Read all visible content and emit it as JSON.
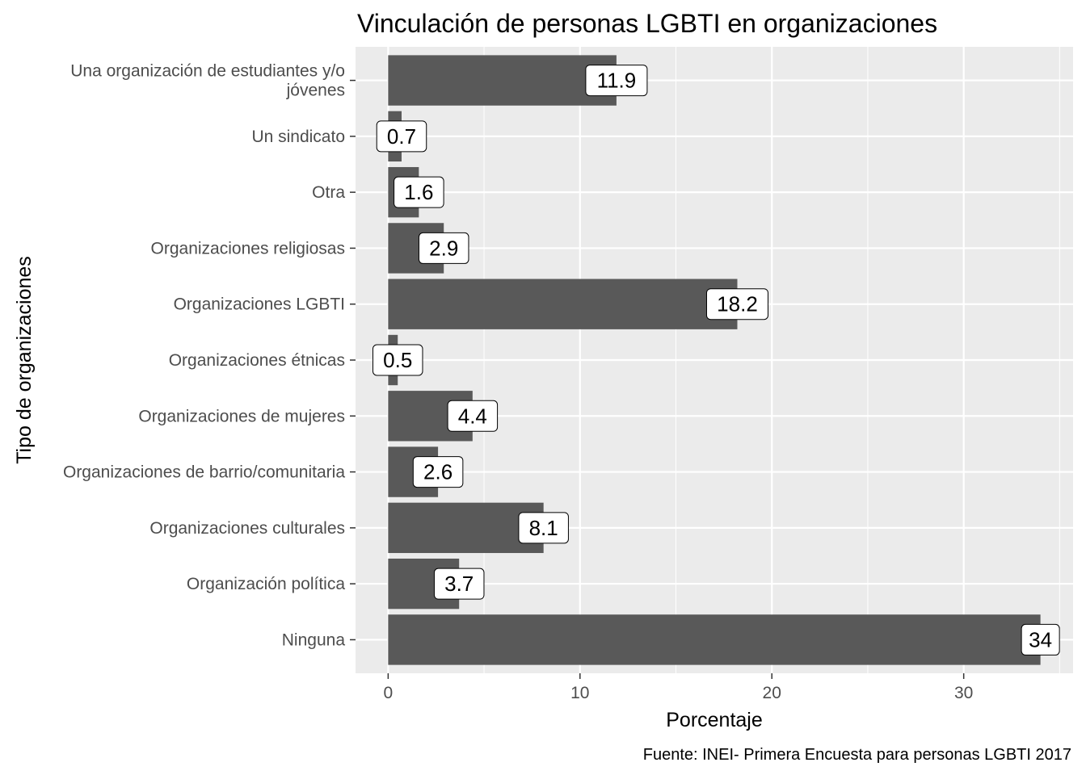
{
  "chart_data": {
    "type": "bar",
    "orientation": "horizontal",
    "title": "Vinculación de personas LGBTI en organizaciones",
    "xlabel": "Porcentaje",
    "ylabel": "Tipo de organizaciones",
    "caption": "Fuente: INEI- Primera Encuesta para personas LGBTI 2017",
    "categories": [
      "Una organización de estudiantes y/o jóvenes",
      "Un sindicato",
      "Otra",
      "Organizaciones religiosas",
      "Organizaciones LGBTI",
      "Organizaciones étnicas",
      "Organizaciones de mujeres",
      "Organizaciones de barrio/comunitaria",
      "Organizaciones culturales",
      "Organización política",
      "Ninguna"
    ],
    "category_lines": [
      [
        "Una organización de estudiantes y/o",
        "jóvenes"
      ],
      [
        "Un sindicato"
      ],
      [
        "Otra"
      ],
      [
        "Organizaciones religiosas"
      ],
      [
        "Organizaciones LGBTI"
      ],
      [
        "Organizaciones étnicas"
      ],
      [
        "Organizaciones de mujeres"
      ],
      [
        "Organizaciones de barrio/comunitaria"
      ],
      [
        "Organizaciones culturales"
      ],
      [
        "Organización política"
      ],
      [
        "Ninguna"
      ]
    ],
    "values": [
      11.9,
      0.7,
      1.6,
      2.9,
      18.2,
      0.5,
      4.4,
      2.6,
      8.1,
      3.7,
      34
    ],
    "data_labels": [
      "11.9",
      "0.7",
      "1.6",
      "2.9",
      "18.2",
      "0.5",
      "4.4",
      "2.6",
      "8.1",
      "3.7",
      "34"
    ],
    "x_ticks": [
      0,
      10,
      20,
      30
    ],
    "x_tick_labels": [
      "0",
      "10",
      "20",
      "30"
    ],
    "xlim": [
      -1.7,
      35.7
    ],
    "grid": true,
    "colors": {
      "bar": "#595959",
      "panel": "#ebebeb",
      "grid": "#ffffff",
      "label_fill": "#ffffff",
      "label_border": "#000000",
      "tick_text": "#4d4d4d",
      "tick_mark": "#333333"
    }
  }
}
